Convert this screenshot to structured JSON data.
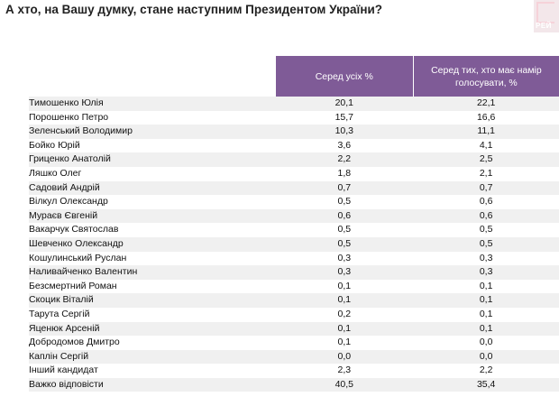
{
  "page": {
    "title": "А хто, на Вашу думку, стане наступним Президентом України?",
    "logo_text": "РЕЙ"
  },
  "table": {
    "headers": [
      "Серед усіх %",
      "Серед тих, хто має намір голосувати, %"
    ],
    "rows": [
      {
        "name": "Тимошенко Юлія",
        "all": "20,1",
        "voters": "22,1"
      },
      {
        "name": "Порошенко Петро",
        "all": "15,7",
        "voters": "16,6"
      },
      {
        "name": "Зеленський Володимир",
        "all": "10,3",
        "voters": "11,1"
      },
      {
        "name": "Бойко Юрій",
        "all": "3,6",
        "voters": "4,1"
      },
      {
        "name": "Гриценко Анатолій",
        "all": "2,2",
        "voters": "2,5"
      },
      {
        "name": "Ляшко Олег",
        "all": "1,8",
        "voters": "2,1"
      },
      {
        "name": "Садовий Андрій",
        "all": "0,7",
        "voters": "0,7"
      },
      {
        "name": "Вілкул Олександр",
        "all": "0,5",
        "voters": "0,6"
      },
      {
        "name": "Мураєв Євгеній",
        "all": "0,6",
        "voters": "0,6"
      },
      {
        "name": "Вакарчук Святослав",
        "all": "0,5",
        "voters": "0,5"
      },
      {
        "name": "Шевченко Олександр",
        "all": "0,5",
        "voters": "0,5"
      },
      {
        "name": "Кошулинський Руслан",
        "all": "0,3",
        "voters": "0,3"
      },
      {
        "name": "Наливайченко Валентин",
        "all": "0,3",
        "voters": "0,3"
      },
      {
        "name": "Безсмертний Роман",
        "all": "0,1",
        "voters": "0,1"
      },
      {
        "name": "Скоцик Віталій",
        "all": "0,1",
        "voters": "0,1"
      },
      {
        "name": "Тарута Сергій",
        "all": "0,2",
        "voters": "0,1"
      },
      {
        "name": "Яценюк Арсеній",
        "all": "0,1",
        "voters": "0,1"
      },
      {
        "name": "Добродомов Дмитро",
        "all": "0,1",
        "voters": "0,0"
      },
      {
        "name": "Каплін Сергій",
        "all": "0,0",
        "voters": "0,0"
      },
      {
        "name": "Інший кандидат",
        "all": "2,3",
        "voters": "2,2"
      },
      {
        "name": "Важко відповісти",
        "all": "40,5",
        "voters": "35,4"
      }
    ]
  },
  "colors": {
    "header_bg": "#7f5b97",
    "stripe": "#f0f0f0"
  }
}
